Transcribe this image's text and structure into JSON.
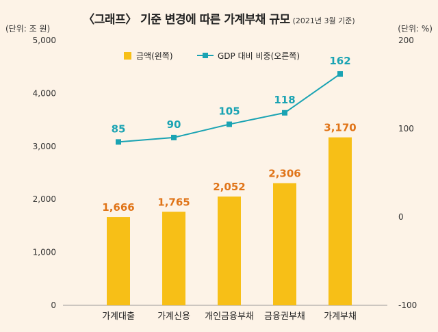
{
  "title": {
    "main": "〈그래프〉 기준 변경에 따른 가계부채 규모",
    "sub": "(2021년 3월 기준)"
  },
  "units": {
    "left": "(단위: 조 원)",
    "right": "(단위: %)"
  },
  "colors": {
    "bar": "#f7bf17",
    "line": "#1aa3b3",
    "bar_label": "#e07418"
  },
  "chart_data": {
    "type": "bar+line",
    "categories": [
      "가계대출",
      "가계신용",
      "개인금융부채",
      "금융권부채",
      "가계부채"
    ],
    "series": [
      {
        "name": "금액(왼쪽)",
        "type": "bar",
        "axis": "left",
        "values": [
          1666,
          1765,
          2052,
          2306,
          3170
        ],
        "labels": [
          "1,666",
          "1,765",
          "2,052",
          "2,306",
          "3,170"
        ]
      },
      {
        "name": "GDP 대비 비중(오른쪽)",
        "type": "line",
        "axis": "right",
        "values": [
          85,
          90,
          105,
          118,
          162
        ],
        "labels": [
          "85",
          "90",
          "105",
          "118",
          "162"
        ]
      }
    ],
    "left_axis": {
      "ylim": [
        0,
        5000
      ],
      "ticks": [
        0,
        1000,
        2000,
        3000,
        4000,
        5000
      ],
      "tick_labels": [
        "0",
        "1,000",
        "2,000",
        "3,000",
        "4,000",
        "5,000"
      ]
    },
    "right_axis": {
      "ylim": [
        -100,
        200
      ],
      "ticks": [
        -100,
        0,
        100,
        200
      ],
      "tick_labels": [
        "-100",
        "0",
        "100",
        "200"
      ]
    },
    "legend_position": "top-center",
    "grid": false
  }
}
